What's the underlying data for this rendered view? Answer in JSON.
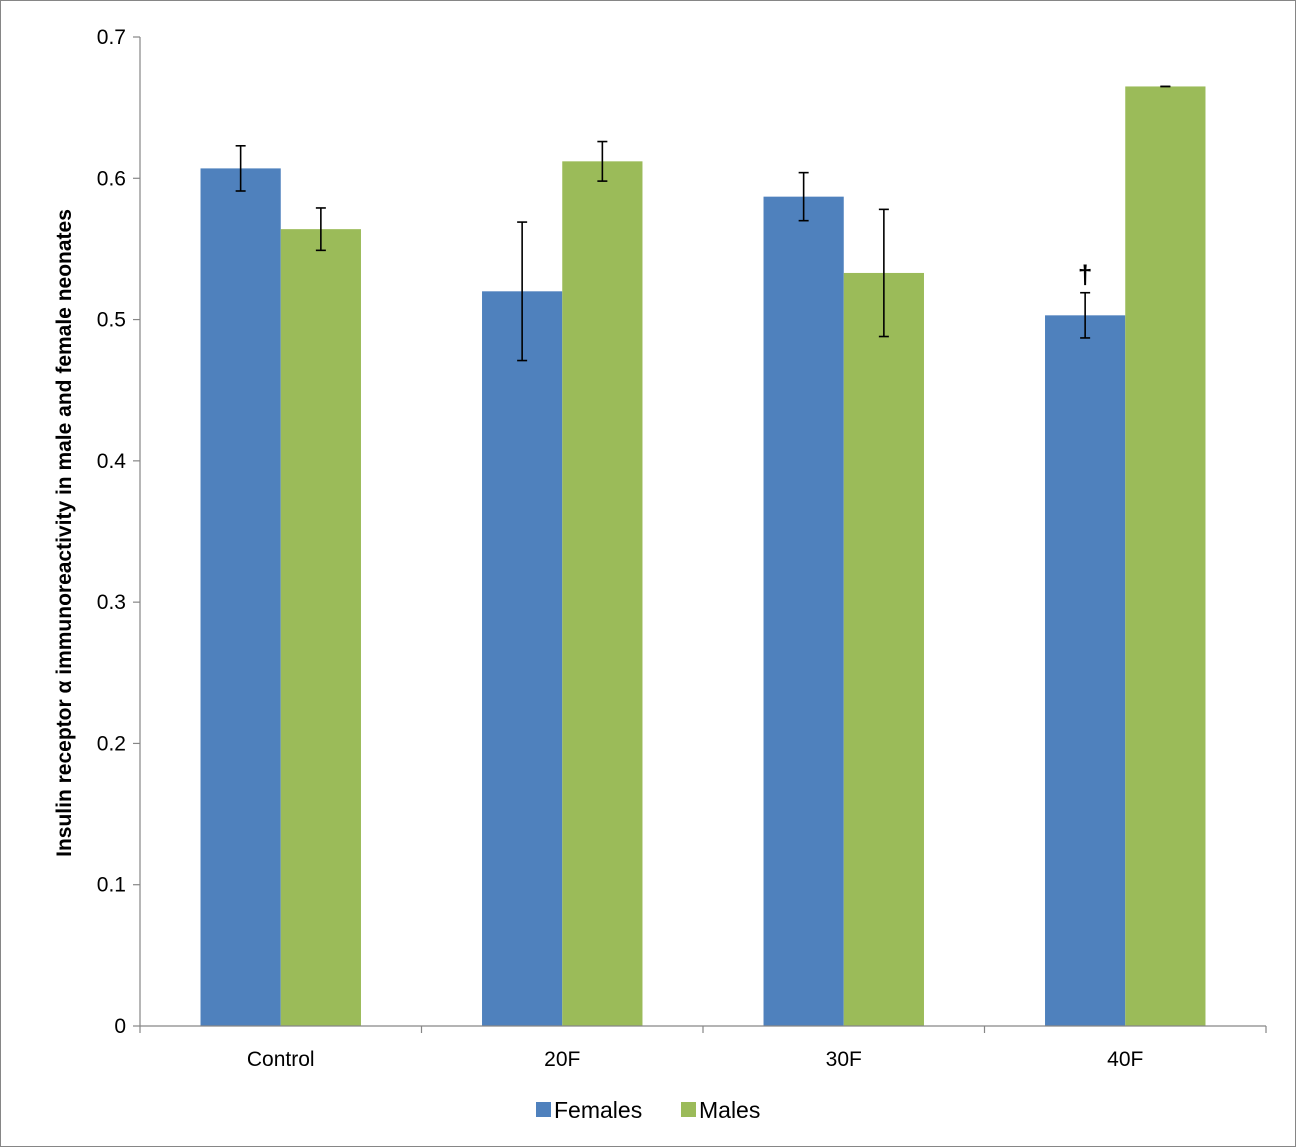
{
  "chart_data": {
    "type": "bar",
    "title": "",
    "xlabel": "",
    "ylabel": "Insulin receptor α immunoreactivity in male and female neonates",
    "ylim": [
      0,
      0.7
    ],
    "yticks": [
      "0",
      "0.1",
      "0.2",
      "0.3",
      "0.4",
      "0.5",
      "0.6",
      "0.7"
    ],
    "grid": false,
    "legend_position": "bottom",
    "categories": [
      "Control",
      "20F",
      "30F",
      "40F"
    ],
    "series": [
      {
        "name": "Females",
        "color": "#4F81BD",
        "values": [
          0.607,
          0.52,
          0.587,
          0.503
        ],
        "errors": [
          0.016,
          0.049,
          0.017,
          0.016
        ]
      },
      {
        "name": "Males",
        "color": "#9BBB59",
        "values": [
          0.564,
          0.612,
          0.533,
          0.665
        ],
        "errors": [
          0.015,
          0.014,
          0.045,
          0.0
        ]
      }
    ],
    "annotations": [
      {
        "text": "†",
        "category": "40F",
        "series": "Females"
      }
    ]
  }
}
